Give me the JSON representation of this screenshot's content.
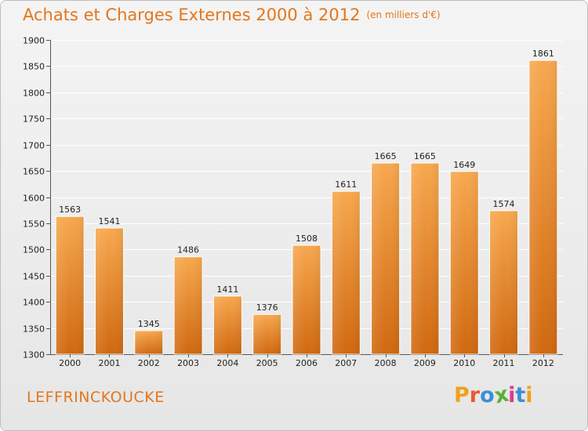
{
  "title": "Achats et Charges Externes 2000 à 2012",
  "unit": "(en milliers d'€)",
  "commune": "LEFFRINCKOUCKE",
  "logo": {
    "text": "Proxiti",
    "colors": [
      "#f0a020",
      "#e85a2a",
      "#3a8fd8",
      "#5ab033",
      "#e03a8a",
      "#3a8fd8",
      "#f0a020"
    ]
  },
  "colors": {
    "accent": "#e3761d",
    "bar_top": "#f7a84e",
    "bar_bottom": "#d0680f",
    "grid": "#ffffff"
  },
  "chart_data": {
    "type": "bar",
    "title": "Achats et Charges Externes 2000 à 2012",
    "xlabel": "",
    "ylabel": "",
    "categories": [
      "2000",
      "2001",
      "2002",
      "2003",
      "2004",
      "2005",
      "2006",
      "2007",
      "2008",
      "2009",
      "2010",
      "2011",
      "2012"
    ],
    "values": [
      1563,
      1541,
      1345,
      1486,
      1411,
      1376,
      1508,
      1611,
      1665,
      1665,
      1649,
      1574,
      1861
    ],
    "ylim": [
      1300,
      1900
    ],
    "yticks": [
      1300,
      1350,
      1400,
      1450,
      1500,
      1550,
      1600,
      1650,
      1700,
      1750,
      1800,
      1850,
      1900
    ],
    "grid": true,
    "data_labels": true
  }
}
